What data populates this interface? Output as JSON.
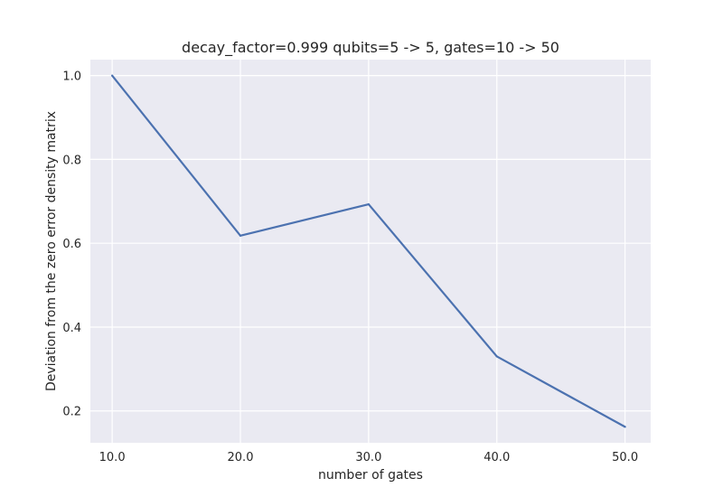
{
  "chart_data": {
    "type": "line",
    "title": "decay_factor=0.999 qubits=5 -> 5, gates=10 -> 50",
    "xlabel": "number of gates",
    "ylabel": "Deviation from the zero error density matrix",
    "x": [
      10.0,
      20.0,
      30.0,
      40.0,
      50.0
    ],
    "x_tick_labels": [
      "10.0",
      "20.0",
      "30.0",
      "40.0",
      "50.0"
    ],
    "y_ticks": [
      0.2,
      0.4,
      0.6,
      0.8,
      1.0
    ],
    "y_tick_labels": [
      "0.2",
      "0.4",
      "0.6",
      "0.8",
      "1.0"
    ],
    "series": [
      {
        "values": [
          1.0,
          0.618,
          0.693,
          0.33,
          0.162
        ]
      }
    ],
    "xlim": [
      8.3,
      52.0
    ],
    "ylim": [
      0.124,
      1.038
    ],
    "grid": true,
    "colors": {
      "background": "#eaeaf2",
      "grid": "#ffffff",
      "line": "#4c72b0",
      "text": "#262626"
    }
  }
}
